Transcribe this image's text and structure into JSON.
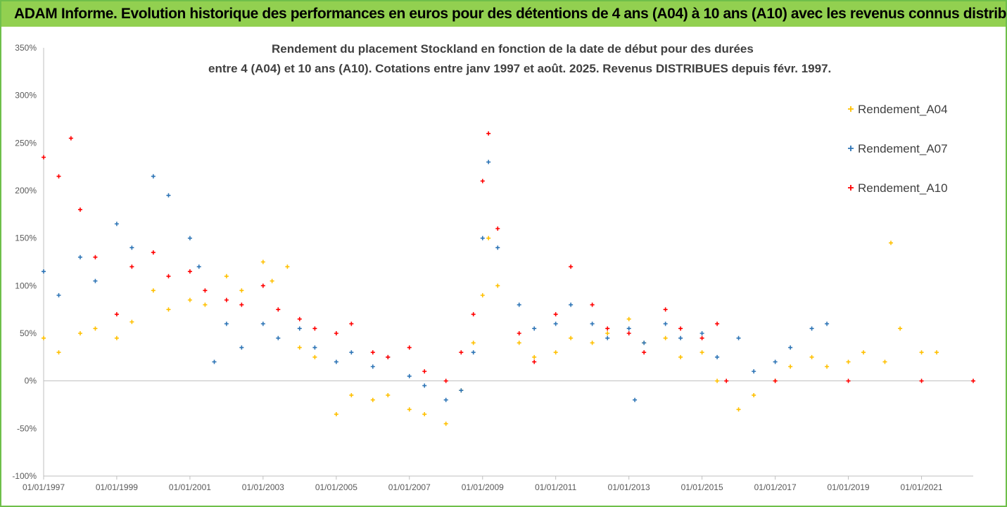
{
  "banner": {
    "title": "ADAM Informe. Evolution historique des performances en euros pour des détentions de 4 ans (A04) à 10 ans (A10) avec les revenus connus distribués"
  },
  "colors": {
    "banner": "#92d050",
    "a04": "#ffc000",
    "a07": "#2e75b6",
    "a10": "#ff0000",
    "grid": "#d9d9d9",
    "axis_text": "#595959"
  },
  "chart_data": {
    "type": "scatter",
    "title_line1": "Rendement du placement Stockland en fonction de la date de début pour des durées",
    "title_line2": "entre 4 (A04) et 10 ans (A10). Cotations entre janv 1997 et août. 2025. Revenus DISTRIBUES depuis févr. 1997.",
    "xlabel": "",
    "ylabel": "",
    "x_ticks": [
      "01/01/1997",
      "01/01/1999",
      "01/01/2001",
      "01/01/2003",
      "01/01/2005",
      "01/01/2007",
      "01/01/2009",
      "01/01/2011",
      "01/01/2013",
      "01/01/2015",
      "01/01/2017",
      "01/01/2019",
      "01/01/2021"
    ],
    "y_ticks": [
      "350%",
      "300%",
      "250%",
      "200%",
      "150%",
      "100%",
      "50%",
      "0%",
      "-50%",
      "-100%"
    ],
    "ylim": [
      -100,
      350
    ],
    "xlim": [
      "1997-01-01",
      "2022-06-01"
    ],
    "grid": "horizontal line at 0% only",
    "legend": "right",
    "marker": "+",
    "series": [
      {
        "name": "Rendement_A04",
        "color": "#ffc000",
        "x": [
          "1997-01-01",
          "1997-06-01",
          "1998-01-01",
          "1998-06-01",
          "1999-01-01",
          "1999-06-01",
          "2000-01-01",
          "2000-06-01",
          "2001-01-01",
          "2001-06-01",
          "2002-01-01",
          "2002-06-01",
          "2003-01-01",
          "2003-04-01",
          "2003-09-01",
          "2004-01-01",
          "2004-06-01",
          "2005-01-01",
          "2005-06-01",
          "2006-01-01",
          "2006-06-01",
          "2007-01-01",
          "2007-06-01",
          "2008-01-01",
          "2008-06-01",
          "2008-10-01",
          "2009-01-01",
          "2009-03-01",
          "2009-06-01",
          "2010-01-01",
          "2010-06-01",
          "2011-01-01",
          "2011-06-01",
          "2012-01-01",
          "2012-06-01",
          "2013-01-01",
          "2013-06-01",
          "2014-01-01",
          "2014-06-01",
          "2015-01-01",
          "2015-06-01",
          "2016-01-01",
          "2016-06-01",
          "2017-01-01",
          "2017-06-01",
          "2018-01-01",
          "2018-06-01",
          "2019-01-01",
          "2019-06-01",
          "2020-01-01",
          "2020-03-01",
          "2020-06-01",
          "2021-01-01",
          "2021-06-01"
        ],
        "values": [
          45,
          30,
          50,
          55,
          45,
          62,
          95,
          75,
          85,
          80,
          110,
          95,
          125,
          105,
          120,
          35,
          25,
          -35,
          -15,
          -20,
          -15,
          -30,
          -35,
          -45,
          -10,
          40,
          90,
          150,
          100,
          40,
          25,
          30,
          45,
          40,
          50,
          65,
          40,
          45,
          25,
          30,
          0,
          -30,
          -15,
          0,
          15,
          25,
          15,
          20,
          30,
          20,
          145,
          55,
          30,
          30
        ]
      },
      {
        "name": "Rendement_A07",
        "color": "#2e75b6",
        "x": [
          "1997-01-01",
          "1997-06-01",
          "1998-01-01",
          "1998-06-01",
          "1999-01-01",
          "1999-06-01",
          "2000-01-01",
          "2000-06-01",
          "2001-01-01",
          "2001-04-01",
          "2001-09-01",
          "2002-01-01",
          "2002-06-01",
          "2003-01-01",
          "2003-06-01",
          "2004-01-01",
          "2004-06-01",
          "2005-01-01",
          "2005-06-01",
          "2006-01-01",
          "2006-06-01",
          "2007-01-01",
          "2007-06-01",
          "2008-01-01",
          "2008-06-01",
          "2008-10-01",
          "2009-01-01",
          "2009-03-01",
          "2009-06-01",
          "2010-01-01",
          "2010-06-01",
          "2011-01-01",
          "2011-06-01",
          "2012-01-01",
          "2012-06-01",
          "2013-01-01",
          "2013-03-01",
          "2013-06-01",
          "2014-01-01",
          "2014-06-01",
          "2015-01-01",
          "2015-06-01",
          "2016-01-01",
          "2016-06-01",
          "2017-01-01",
          "2017-06-01",
          "2018-01-01",
          "2018-06-01"
        ],
        "values": [
          115,
          90,
          130,
          105,
          165,
          140,
          215,
          195,
          150,
          120,
          20,
          60,
          35,
          60,
          45,
          55,
          35,
          20,
          30,
          15,
          25,
          5,
          -5,
          -20,
          -10,
          30,
          150,
          230,
          140,
          80,
          55,
          60,
          80,
          60,
          45,
          55,
          -20,
          40,
          60,
          45,
          50,
          25,
          45,
          10,
          20,
          35,
          55,
          60
        ]
      },
      {
        "name": "Rendement_A10",
        "color": "#ff0000",
        "x": [
          "1997-01-01",
          "1997-06-01",
          "1997-10-01",
          "1998-01-01",
          "1998-06-01",
          "1999-01-01",
          "1999-06-01",
          "2000-01-01",
          "2000-06-01",
          "2001-01-01",
          "2001-06-01",
          "2002-01-01",
          "2002-06-01",
          "2003-01-01",
          "2003-06-01",
          "2004-01-01",
          "2004-06-01",
          "2005-01-01",
          "2005-06-01",
          "2006-01-01",
          "2006-06-01",
          "2007-01-01",
          "2007-06-01",
          "2008-01-01",
          "2008-06-01",
          "2008-10-01",
          "2009-01-01",
          "2009-03-01",
          "2009-06-01",
          "2010-01-01",
          "2010-06-01",
          "2011-01-01",
          "2011-06-01",
          "2012-01-01",
          "2012-06-01",
          "2013-01-01",
          "2013-06-01",
          "2014-01-01",
          "2014-06-01",
          "2015-01-01",
          "2015-06-01",
          "2015-09-01",
          "2017-01-01",
          "2019-01-01",
          "2021-01-01",
          "2022-06-01"
        ],
        "values": [
          235,
          215,
          255,
          180,
          130,
          70,
          120,
          135,
          110,
          115,
          95,
          85,
          80,
          100,
          75,
          65,
          55,
          50,
          60,
          30,
          25,
          35,
          10,
          0,
          30,
          70,
          210,
          260,
          160,
          50,
          20,
          70,
          120,
          80,
          55,
          50,
          30,
          75,
          55,
          45,
          60,
          0,
          0,
          0,
          0,
          0
        ]
      }
    ]
  }
}
